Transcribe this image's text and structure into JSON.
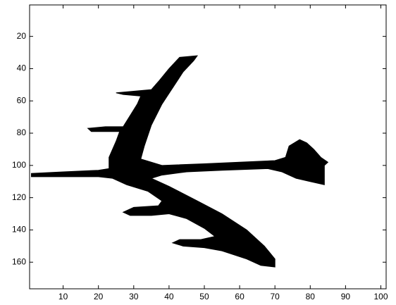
{
  "chart_data": {
    "type": "image",
    "color": "#000000",
    "xlim": [
      0.5,
      101.5
    ],
    "ylim": [
      0.5,
      176.5
    ],
    "y_reversed": true,
    "xticks": [
      10,
      20,
      30,
      40,
      50,
      60,
      70,
      80,
      90,
      100
    ],
    "yticks": [
      20,
      40,
      60,
      80,
      100,
      120,
      140,
      160
    ],
    "outline_x": [
      43,
      48,
      47,
      44,
      41,
      38,
      35,
      33,
      32,
      38,
      50,
      60,
      70,
      73,
      74,
      77,
      79,
      81,
      83,
      85,
      84,
      84,
      84,
      80,
      76,
      72,
      68,
      55,
      45,
      38,
      35,
      40,
      48,
      55,
      62,
      67,
      70,
      70,
      66,
      62,
      55,
      50,
      44,
      41,
      43,
      49,
      53,
      50,
      45,
      40,
      35,
      29,
      27,
      30,
      37,
      38,
      34,
      28,
      24,
      20,
      10,
      1,
      1,
      10,
      20,
      23,
      23,
      25,
      26,
      18,
      17,
      22,
      27,
      29,
      31,
      32,
      27,
      25,
      30,
      35,
      37,
      40
    ],
    "outline_y": [
      33,
      32,
      35,
      42,
      52,
      62,
      75,
      88,
      96,
      100,
      99,
      98,
      97,
      95,
      88,
      84,
      86,
      90,
      95,
      98,
      100,
      106,
      112,
      110,
      108,
      104,
      102,
      103,
      104,
      106,
      108,
      113,
      122,
      130,
      140,
      150,
      158,
      163,
      162,
      158,
      153,
      151,
      150,
      148,
      146,
      146,
      144,
      139,
      133,
      130,
      131,
      131,
      129,
      126,
      125,
      122,
      116,
      112,
      108,
      107,
      107,
      107,
      105,
      104,
      103,
      102,
      95,
      85,
      79,
      79,
      77,
      76,
      76,
      69,
      62,
      57,
      56,
      55,
      54,
      53,
      48,
      40
    ]
  }
}
